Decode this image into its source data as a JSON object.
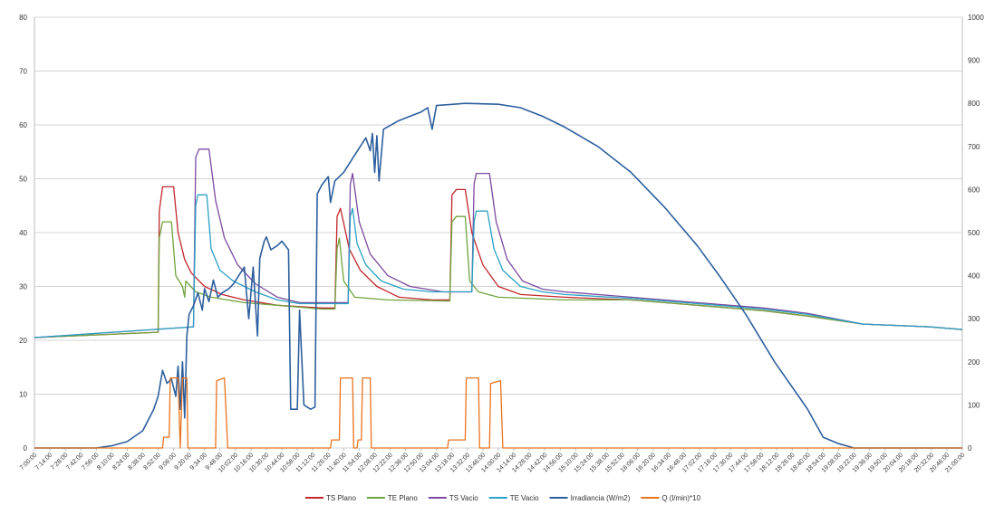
{
  "chart_data": {
    "type": "line",
    "title": "",
    "xlabel": "",
    "ylabel": "",
    "y2label": "",
    "ylim": [
      0,
      80
    ],
    "y2lim": [
      0,
      1000
    ],
    "grid": true,
    "legend_position": "bottom",
    "yticks": [
      "0",
      "10",
      "20",
      "30",
      "40",
      "50",
      "60",
      "70",
      "80"
    ],
    "y2ticks": [
      "0",
      "100",
      "200",
      "300",
      "400",
      "500",
      "600",
      "700",
      "800",
      "900",
      "1000"
    ],
    "xticks": [
      "7:00:00",
      "7:14:00",
      "7:28:00",
      "7:42:00",
      "7:56:00",
      "8:10:00",
      "8:24:00",
      "8:38:00",
      "8:52:00",
      "9:06:00",
      "9:20:00",
      "9:34:00",
      "9:48:00",
      "10:02:00",
      "10:16:00",
      "10:30:00",
      "10:44:00",
      "10:58:00",
      "11:12:00",
      "11:26:00",
      "11:40:00",
      "11:54:00",
      "12:08:00",
      "12:22:00",
      "12:36:00",
      "12:50:00",
      "13:04:00",
      "13:18:00",
      "13:32:00",
      "13:46:00",
      "14:00:00",
      "14:14:00",
      "14:28:00",
      "14:42:00",
      "14:56:00",
      "15:10:00",
      "15:24:00",
      "15:38:00",
      "15:52:00",
      "16:06:00",
      "16:20:00",
      "16:34:00",
      "16:48:00",
      "17:02:00",
      "17:16:00",
      "17:30:00",
      "17:44:00",
      "17:58:00",
      "18:12:00",
      "18:26:00",
      "18:40:00",
      "18:54:00",
      "19:08:00",
      "19:22:00",
      "19:36:00",
      "19:50:00",
      "20:04:00",
      "20:18:00",
      "20:32:00",
      "20:46:00",
      "21:00:00"
    ],
    "series": [
      {
        "name": "TS Plano",
        "color": "#c0282d",
        "axis": "left",
        "points": [
          [
            "7:00:00",
            20.5
          ],
          [
            "8:52:00",
            21.5
          ],
          [
            "8:53:00",
            44
          ],
          [
            "8:56:00",
            48.5
          ],
          [
            "9:06:00",
            48.5
          ],
          [
            "9:10:00",
            40
          ],
          [
            "9:16:00",
            35
          ],
          [
            "9:22:00",
            32.5
          ],
          [
            "9:34:00",
            30
          ],
          [
            "9:50:00",
            28.5
          ],
          [
            "10:10:00",
            27.5
          ],
          [
            "10:40:00",
            26.5
          ],
          [
            "11:20:00",
            26
          ],
          [
            "11:32:00",
            26
          ],
          [
            "11:34:00",
            43
          ],
          [
            "11:37:00",
            44.5
          ],
          [
            "11:45:00",
            37
          ],
          [
            "11:55:00",
            33
          ],
          [
            "12:10:00",
            30
          ],
          [
            "12:30:00",
            28
          ],
          [
            "13:00:00",
            27.5
          ],
          [
            "13:16:00",
            27.5
          ],
          [
            "13:18:00",
            47
          ],
          [
            "13:22:00",
            48
          ],
          [
            "13:30:00",
            48
          ],
          [
            "13:36:00",
            40
          ],
          [
            "13:46:00",
            34
          ],
          [
            "14:00:00",
            30
          ],
          [
            "14:20:00",
            28.5
          ],
          [
            "15:00:00",
            28
          ],
          [
            "16:00:00",
            27.5
          ],
          [
            "17:00:00",
            26.5
          ],
          [
            "18:00:00",
            25.5
          ],
          [
            "18:40:00",
            24.5
          ],
          [
            "19:30:00",
            23
          ],
          [
            "20:30:00",
            22.5
          ],
          [
            "21:00:00",
            22
          ]
        ]
      },
      {
        "name": "TE Plano",
        "color": "#70a33e",
        "axis": "left",
        "points": [
          [
            "7:00:00",
            20.5
          ],
          [
            "8:52:00",
            21.5
          ],
          [
            "8:53:00",
            39
          ],
          [
            "8:56:00",
            42
          ],
          [
            "9:04:00",
            42
          ],
          [
            "9:08:00",
            32
          ],
          [
            "9:14:00",
            30
          ],
          [
            "9:16:00",
            28
          ],
          [
            "9:17:00",
            31
          ],
          [
            "9:26:00",
            29
          ],
          [
            "9:40:00",
            28
          ],
          [
            "10:10:00",
            27
          ],
          [
            "10:40:00",
            26.5
          ],
          [
            "11:20:00",
            25.8
          ],
          [
            "11:32:00",
            25.8
          ],
          [
            "11:34:00",
            37
          ],
          [
            "11:36:00",
            39
          ],
          [
            "11:40:00",
            31
          ],
          [
            "11:50:00",
            28
          ],
          [
            "12:20:00",
            27.5
          ],
          [
            "13:16:00",
            27.3
          ],
          [
            "13:18:00",
            42
          ],
          [
            "13:22:00",
            43
          ],
          [
            "13:30:00",
            43
          ],
          [
            "13:34:00",
            31
          ],
          [
            "13:42:00",
            29
          ],
          [
            "14:00:00",
            28
          ],
          [
            "15:00:00",
            27.5
          ],
          [
            "16:00:00",
            27.5
          ],
          [
            "17:00:00",
            26.5
          ],
          [
            "18:00:00",
            25.5
          ],
          [
            "18:40:00",
            24.5
          ],
          [
            "19:30:00",
            23
          ],
          [
            "20:30:00",
            22.5
          ],
          [
            "21:00:00",
            22
          ]
        ]
      },
      {
        "name": "TS Vacio",
        "color": "#7a4aa0",
        "axis": "left",
        "points": [
          [
            "7:00:00",
            20.5
          ],
          [
            "9:24:00",
            22.5
          ],
          [
            "9:26:00",
            54
          ],
          [
            "9:29:00",
            55.5
          ],
          [
            "9:38:00",
            55.5
          ],
          [
            "9:44:00",
            46
          ],
          [
            "9:52:00",
            39
          ],
          [
            "10:04:00",
            34
          ],
          [
            "10:20:00",
            30.5
          ],
          [
            "10:40:00",
            28
          ],
          [
            "11:00:00",
            27
          ],
          [
            "11:30:00",
            27
          ],
          [
            "11:44:00",
            27
          ],
          [
            "11:46:00",
            49
          ],
          [
            "11:48:00",
            51
          ],
          [
            "11:54:00",
            42
          ],
          [
            "12:04:00",
            36
          ],
          [
            "12:20:00",
            32
          ],
          [
            "12:40:00",
            30
          ],
          [
            "13:10:00",
            29
          ],
          [
            "13:36:00",
            29
          ],
          [
            "13:38:00",
            49
          ],
          [
            "13:40:00",
            51
          ],
          [
            "13:52:00",
            51
          ],
          [
            "13:58:00",
            42
          ],
          [
            "14:08:00",
            35
          ],
          [
            "14:22:00",
            31
          ],
          [
            "14:40:00",
            29.5
          ],
          [
            "15:00:00",
            29
          ],
          [
            "16:00:00",
            28
          ],
          [
            "17:00:00",
            27
          ],
          [
            "18:00:00",
            26
          ],
          [
            "18:40:00",
            25
          ],
          [
            "19:30:00",
            23
          ],
          [
            "20:30:00",
            22.5
          ],
          [
            "21:00:00",
            22
          ]
        ]
      },
      {
        "name": "TE Vacio",
        "color": "#2aa1c3",
        "axis": "left",
        "points": [
          [
            "7:00:00",
            20.5
          ],
          [
            "9:24:00",
            22.5
          ],
          [
            "9:26:00",
            45
          ],
          [
            "9:28:00",
            47
          ],
          [
            "9:36:00",
            47
          ],
          [
            "9:40:00",
            37
          ],
          [
            "9:48:00",
            33
          ],
          [
            "10:00:00",
            31
          ],
          [
            "10:20:00",
            29
          ],
          [
            "10:40:00",
            27.5
          ],
          [
            "11:00:00",
            26.8
          ],
          [
            "11:30:00",
            26.8
          ],
          [
            "11:44:00",
            26.8
          ],
          [
            "11:46:00",
            43
          ],
          [
            "11:48:00",
            44.5
          ],
          [
            "11:52:00",
            38
          ],
          [
            "12:00:00",
            34
          ],
          [
            "12:14:00",
            31
          ],
          [
            "12:34:00",
            29.5
          ],
          [
            "13:00:00",
            29
          ],
          [
            "13:36:00",
            29
          ],
          [
            "13:38:00",
            42
          ],
          [
            "13:40:00",
            44
          ],
          [
            "13:50:00",
            44
          ],
          [
            "13:56:00",
            37
          ],
          [
            "14:04:00",
            33
          ],
          [
            "14:20:00",
            30
          ],
          [
            "14:40:00",
            29
          ],
          [
            "15:00:00",
            28.5
          ],
          [
            "16:00:00",
            27.8
          ],
          [
            "17:00:00",
            26.8
          ],
          [
            "18:00:00",
            25.8
          ],
          [
            "18:40:00",
            24.8
          ],
          [
            "19:30:00",
            23
          ],
          [
            "20:30:00",
            22.5
          ],
          [
            "21:00:00",
            22
          ]
        ]
      },
      {
        "name": "Irradiancia (W/m2)",
        "color": "#2d5f9e",
        "axis": "right",
        "points": [
          [
            "7:00:00",
            0
          ],
          [
            "7:56:00",
            0
          ],
          [
            "8:10:00",
            5
          ],
          [
            "8:24:00",
            15
          ],
          [
            "8:38:00",
            40
          ],
          [
            "8:48:00",
            90
          ],
          [
            "8:52:00",
            120
          ],
          [
            "8:56:00",
            180
          ],
          [
            "9:00:00",
            150
          ],
          [
            "9:04:00",
            160
          ],
          [
            "9:08:00",
            120
          ],
          [
            "9:10:00",
            190
          ],
          [
            "9:12:00",
            90
          ],
          [
            "9:14:00",
            200
          ],
          [
            "9:16:00",
            70
          ],
          [
            "9:18:00",
            260
          ],
          [
            "9:20:00",
            310
          ],
          [
            "9:24:00",
            330
          ],
          [
            "9:28:00",
            360
          ],
          [
            "9:32:00",
            320
          ],
          [
            "9:34:00",
            370
          ],
          [
            "9:38:00",
            340
          ],
          [
            "9:42:00",
            390
          ],
          [
            "9:46:00",
            350
          ],
          [
            "9:50:00",
            360
          ],
          [
            "9:56:00",
            370
          ],
          [
            "10:00:00",
            380
          ],
          [
            "10:10:00",
            420
          ],
          [
            "10:14:00",
            300
          ],
          [
            "10:18:00",
            420
          ],
          [
            "10:22:00",
            260
          ],
          [
            "10:24:00",
            440
          ],
          [
            "10:28:00",
            480
          ],
          [
            "10:30:00",
            490
          ],
          [
            "10:34:00",
            460
          ],
          [
            "10:40:00",
            470
          ],
          [
            "10:44:00",
            480
          ],
          [
            "10:50:00",
            460
          ],
          [
            "10:52:00",
            90
          ],
          [
            "10:58:00",
            90
          ],
          [
            "11:00:00",
            320
          ],
          [
            "11:04:00",
            100
          ],
          [
            "11:10:00",
            90
          ],
          [
            "11:14:00",
            95
          ],
          [
            "11:16:00",
            590
          ],
          [
            "11:20:00",
            610
          ],
          [
            "11:26:00",
            630
          ],
          [
            "11:28:00",
            570
          ],
          [
            "11:32:00",
            620
          ],
          [
            "11:40:00",
            640
          ],
          [
            "11:50:00",
            680
          ],
          [
            "12:00:00",
            720
          ],
          [
            "12:04:00",
            690
          ],
          [
            "12:06:00",
            730
          ],
          [
            "12:08:00",
            640
          ],
          [
            "12:10:00",
            725
          ],
          [
            "12:12:00",
            620
          ],
          [
            "12:16:00",
            740
          ],
          [
            "12:30:00",
            760
          ],
          [
            "12:50:00",
            780
          ],
          [
            "12:56:00",
            790
          ],
          [
            "13:00:00",
            740
          ],
          [
            "13:04:00",
            795
          ],
          [
            "13:30:00",
            800
          ],
          [
            "14:00:00",
            798
          ],
          [
            "14:20:00",
            790
          ],
          [
            "14:40:00",
            770
          ],
          [
            "15:00:00",
            745
          ],
          [
            "15:30:00",
            700
          ],
          [
            "16:00:00",
            640
          ],
          [
            "16:30:00",
            560
          ],
          [
            "17:00:00",
            470
          ],
          [
            "17:20:00",
            400
          ],
          [
            "17:44:00",
            310
          ],
          [
            "18:10:00",
            200
          ],
          [
            "18:40:00",
            90
          ],
          [
            "18:54:00",
            25
          ],
          [
            "19:08:00",
            10
          ],
          [
            "19:22:00",
            0
          ],
          [
            "21:00:00",
            0
          ]
        ]
      },
      {
        "name": "Q (l/min)*10",
        "color": "#e8731e",
        "axis": "left",
        "points": [
          [
            "7:00:00",
            0
          ],
          [
            "8:56:00",
            0
          ],
          [
            "8:57:00",
            2
          ],
          [
            "9:02:00",
            2
          ],
          [
            "9:03:00",
            13
          ],
          [
            "9:10:00",
            13
          ],
          [
            "9:12:00",
            0
          ],
          [
            "9:14:00",
            13
          ],
          [
            "9:18:00",
            13
          ],
          [
            "9:19:00",
            0
          ],
          [
            "9:44:00",
            0
          ],
          [
            "9:45:00",
            12.5
          ],
          [
            "9:52:00",
            13
          ],
          [
            "9:55:00",
            0
          ],
          [
            "11:28:00",
            0
          ],
          [
            "11:29:00",
            1.5
          ],
          [
            "11:36:00",
            1.5
          ],
          [
            "11:37:00",
            13
          ],
          [
            "11:48:00",
            13
          ],
          [
            "11:49:00",
            0
          ],
          [
            "11:52:00",
            0
          ],
          [
            "11:53:00",
            1.5
          ],
          [
            "11:56:00",
            1.5
          ],
          [
            "11:57:00",
            13
          ],
          [
            "12:04:00",
            13
          ],
          [
            "12:05:00",
            0
          ],
          [
            "13:14:00",
            0
          ],
          [
            "13:15:00",
            1.5
          ],
          [
            "13:30:00",
            1.5
          ],
          [
            "13:31:00",
            13
          ],
          [
            "13:42:00",
            13
          ],
          [
            "13:43:00",
            0
          ],
          [
            "13:52:00",
            0
          ],
          [
            "13:53:00",
            12
          ],
          [
            "14:02:00",
            12.5
          ],
          [
            "14:04:00",
            0
          ],
          [
            "21:00:00",
            0
          ]
        ]
      }
    ]
  }
}
